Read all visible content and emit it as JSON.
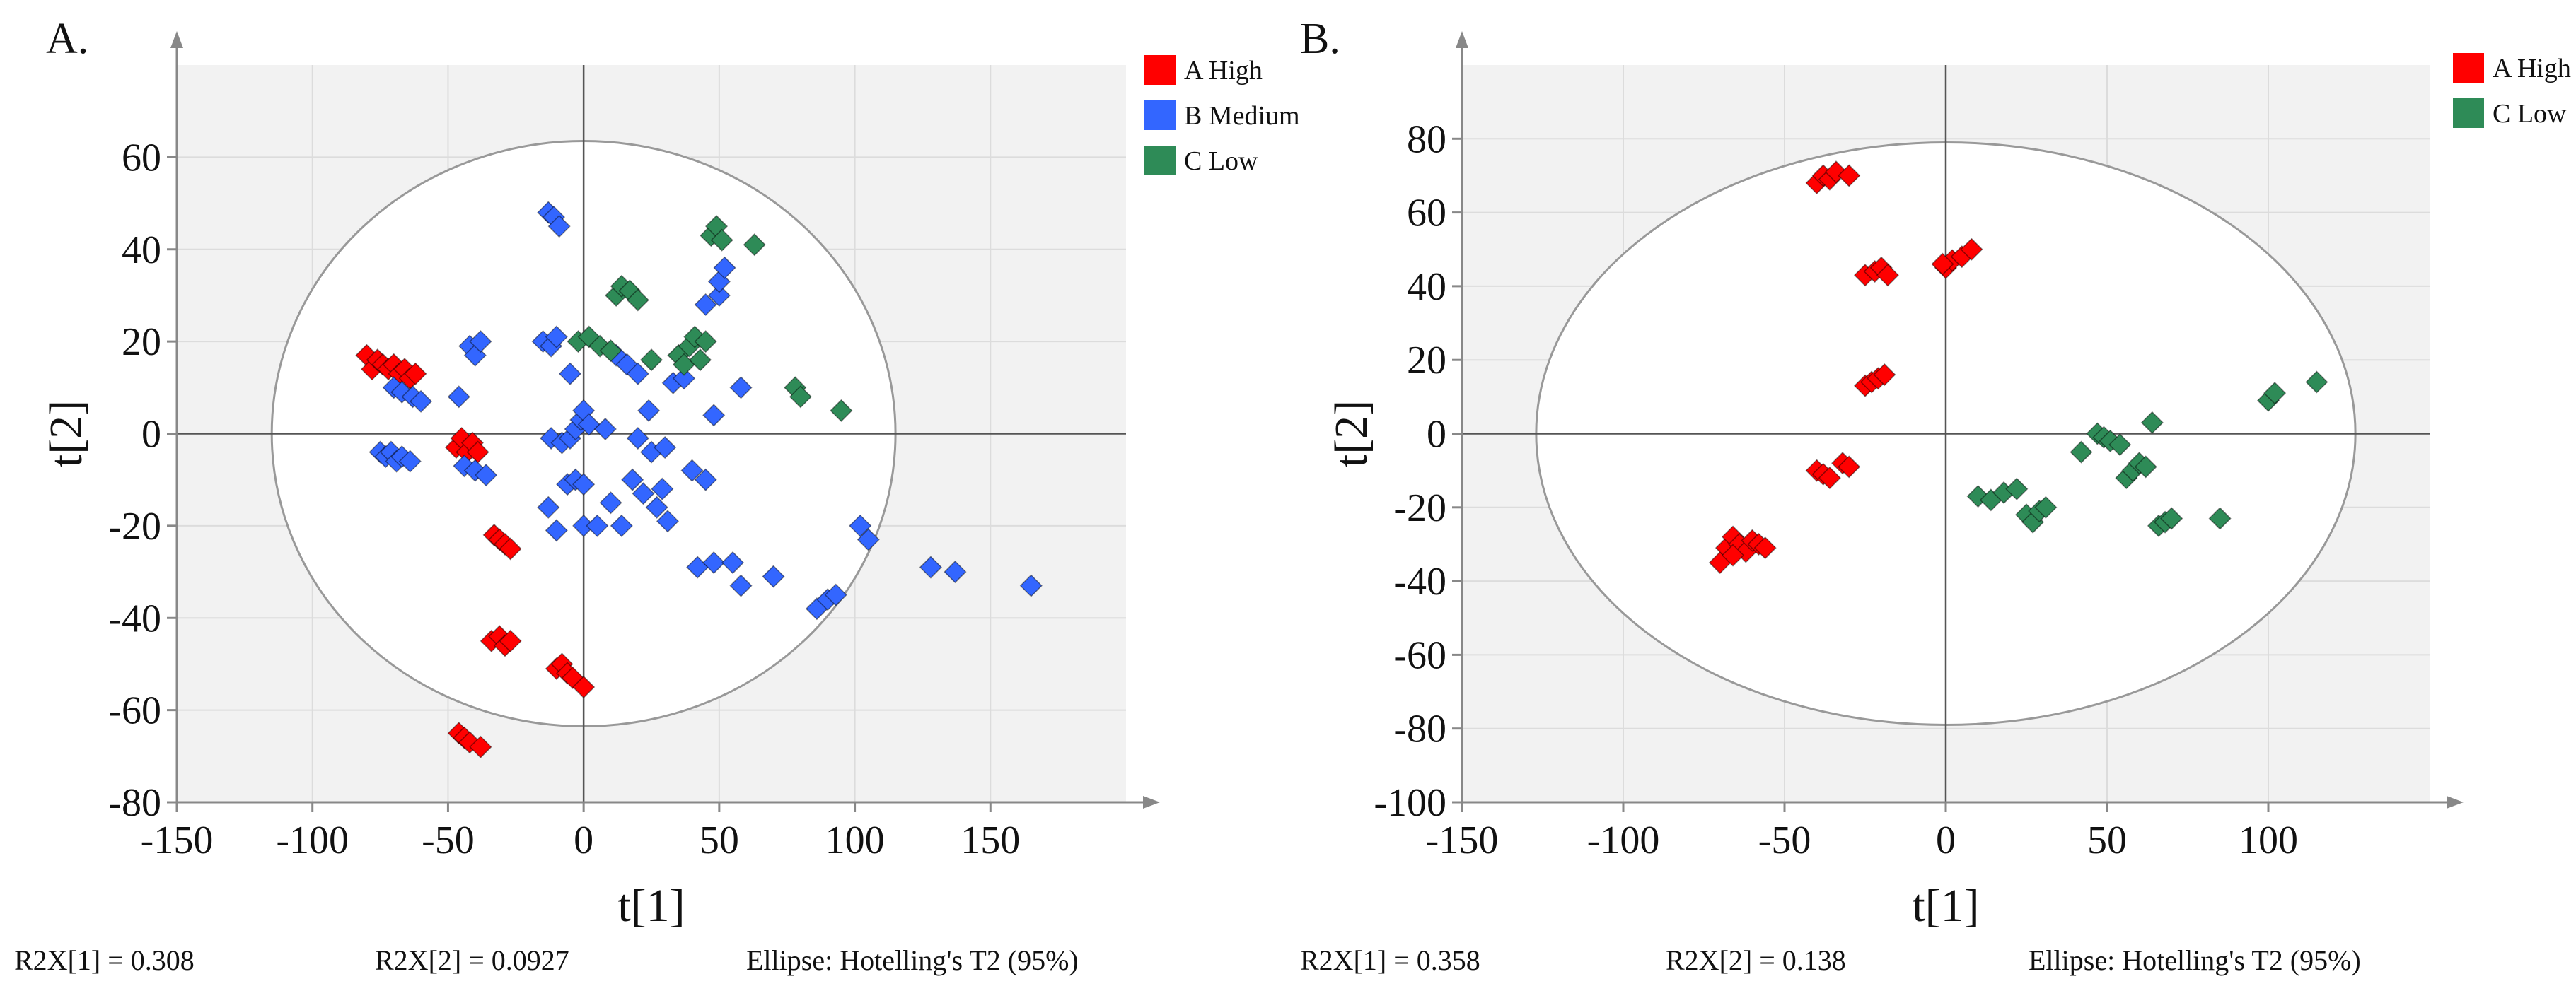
{
  "colors": {
    "high": "#ff0000",
    "medium": "#3366ff",
    "low": "#2e8b57",
    "plot_bg": "#f2f2f2",
    "grid": "#dcdcdc",
    "ellipse": "#999999",
    "ellipse_fill": "#ffffff",
    "axis": "#888888",
    "text": "#111111"
  },
  "chart_data": [
    {
      "panel_label": "A.",
      "type": "scatter",
      "xlabel": "t[1]",
      "ylabel": "t[2]",
      "xlim": [
        -150,
        200
      ],
      "ylim": [
        -80,
        80
      ],
      "xticks": [
        -150,
        -100,
        -50,
        0,
        50,
        100,
        150
      ],
      "xtick_labels": [
        "-150",
        "-100",
        "-50",
        "0",
        "50",
        "100",
        "150"
      ],
      "yticks": [
        -80,
        -60,
        -40,
        -20,
        0,
        20,
        40,
        60
      ],
      "ytick_labels": [
        "-80",
        "-60",
        "-40",
        "-20",
        "0",
        "20",
        "40",
        "60"
      ],
      "grid": true,
      "legend": "top-right outside",
      "ellipse": {
        "rx": 115,
        "ry": 63.5
      },
      "footer": [
        "R2X[1] = 0.308",
        "R2X[2] = 0.0927",
        "Ellipse: Hotelling's T2 (95%)"
      ],
      "series": [
        {
          "name": "A High",
          "color_key": "high",
          "points": [
            [
              -80,
              17
            ],
            [
              -78,
              14
            ],
            [
              -76,
              16
            ],
            [
              -74,
              15
            ],
            [
              -72,
              14
            ],
            [
              -70,
              15
            ],
            [
              -68,
              13
            ],
            [
              -66,
              14
            ],
            [
              -64,
              12
            ],
            [
              -62,
              13
            ],
            [
              -47,
              -3
            ],
            [
              -45,
              -1
            ],
            [
              -43,
              -4
            ],
            [
              -41,
              -2
            ],
            [
              -39,
              -4
            ],
            [
              -33,
              -22
            ],
            [
              -31,
              -23
            ],
            [
              -29,
              -24
            ],
            [
              -27,
              -25
            ],
            [
              -34,
              -45
            ],
            [
              -31,
              -44
            ],
            [
              -29,
              -46
            ],
            [
              -27,
              -45
            ],
            [
              -10,
              -51
            ],
            [
              -8,
              -50
            ],
            [
              -6,
              -52
            ],
            [
              -4,
              -53
            ],
            [
              0,
              -55
            ],
            [
              -46,
              -65
            ],
            [
              -44,
              -66
            ],
            [
              -42,
              -67
            ],
            [
              -38,
              -68
            ]
          ]
        },
        {
          "name": "B Medium",
          "color_key": "medium",
          "points": [
            [
              -75,
              -4
            ],
            [
              -73,
              -5
            ],
            [
              -71,
              -4
            ],
            [
              -69,
              -6
            ],
            [
              -67,
              -5
            ],
            [
              -64,
              -6
            ],
            [
              -70,
              10
            ],
            [
              -67,
              9
            ],
            [
              -63,
              8
            ],
            [
              -60,
              7
            ],
            [
              -46,
              8
            ],
            [
              -42,
              19
            ],
            [
              -40,
              17
            ],
            [
              -38,
              20
            ],
            [
              -44,
              -7
            ],
            [
              -40,
              -8
            ],
            [
              -36,
              -9
            ],
            [
              -13,
              48
            ],
            [
              -11,
              47
            ],
            [
              -9,
              45
            ],
            [
              -15,
              20
            ],
            [
              -12,
              19
            ],
            [
              -10,
              21
            ],
            [
              -5,
              13
            ],
            [
              -13,
              -16
            ],
            [
              -10,
              -21
            ],
            [
              -12,
              -1
            ],
            [
              -8,
              -2
            ],
            [
              -5,
              -1
            ],
            [
              -3,
              1
            ],
            [
              -1,
              3
            ],
            [
              0,
              5
            ],
            [
              2,
              2
            ],
            [
              -6,
              -11
            ],
            [
              -3,
              -10
            ],
            [
              0,
              -11
            ],
            [
              0,
              -20
            ],
            [
              12,
              17
            ],
            [
              16,
              15
            ],
            [
              20,
              13
            ],
            [
              14,
              -20
            ],
            [
              18,
              -10
            ],
            [
              20,
              -1
            ],
            [
              22,
              -13
            ],
            [
              25,
              -4
            ],
            [
              27,
              -16
            ],
            [
              29,
              -12
            ],
            [
              31,
              -19
            ],
            [
              33,
              11
            ],
            [
              37,
              12
            ],
            [
              40,
              -8
            ],
            [
              42,
              -29
            ],
            [
              45,
              -10
            ],
            [
              48,
              -28
            ],
            [
              48,
              4
            ],
            [
              50,
              30
            ],
            [
              45,
              28
            ],
            [
              50,
              33
            ],
            [
              52,
              36
            ],
            [
              55,
              -28
            ],
            [
              58,
              -33
            ],
            [
              58,
              10
            ],
            [
              70,
              -31
            ],
            [
              86,
              -38
            ],
            [
              90,
              -36
            ],
            [
              93,
              -35
            ],
            [
              102,
              -20
            ],
            [
              105,
              -23
            ],
            [
              128,
              -29
            ],
            [
              137,
              -30
            ],
            [
              165,
              -33
            ],
            [
              5,
              -20
            ],
            [
              10,
              -15
            ],
            [
              24,
              5
            ],
            [
              30,
              -3
            ],
            [
              8,
              1
            ]
          ]
        },
        {
          "name": "C Low",
          "color_key": "low",
          "points": [
            [
              -2,
              20
            ],
            [
              2,
              21
            ],
            [
              6,
              19
            ],
            [
              10,
              18
            ],
            [
              12,
              30
            ],
            [
              14,
              32
            ],
            [
              17,
              31
            ],
            [
              20,
              29
            ],
            [
              25,
              16
            ],
            [
              35,
              17
            ],
            [
              37,
              15
            ],
            [
              39,
              19
            ],
            [
              41,
              21
            ],
            [
              43,
              16
            ],
            [
              45,
              20
            ],
            [
              47,
              43
            ],
            [
              49,
              45
            ],
            [
              51,
              42
            ],
            [
              63,
              41
            ],
            [
              78,
              10
            ],
            [
              80,
              8
            ],
            [
              95,
              5
            ]
          ]
        }
      ]
    },
    {
      "panel_label": "B.",
      "type": "scatter",
      "xlabel": "t[1]",
      "ylabel": "t[2]",
      "xlim": [
        -150,
        150
      ],
      "ylim": [
        -100,
        100
      ],
      "xticks": [
        -150,
        -100,
        -50,
        0,
        50,
        100
      ],
      "xtick_labels": [
        "-150",
        "-100",
        "-50",
        "0",
        "50",
        "100"
      ],
      "yticks": [
        -100,
        -80,
        -60,
        -40,
        -20,
        0,
        20,
        40,
        60,
        80
      ],
      "ytick_labels": [
        "-100",
        "-80",
        "-60",
        "-40",
        "-20",
        "0",
        "20",
        "40",
        "60",
        "80"
      ],
      "grid": true,
      "legend": "top-right outside",
      "ellipse": {
        "rx": 127,
        "ry": 79
      },
      "footer": [
        "R2X[1] = 0.358",
        "R2X[2] = 0.138",
        "Ellipse: Hotelling's T2 (95%)"
      ],
      "series": [
        {
          "name": "A High",
          "color_key": "high",
          "points": [
            [
              -40,
              68
            ],
            [
              -38,
              70
            ],
            [
              -36,
              69
            ],
            [
              -34,
              71
            ],
            [
              -30,
              70
            ],
            [
              -25,
              43
            ],
            [
              -22,
              44
            ],
            [
              -20,
              45
            ],
            [
              -18,
              43
            ],
            [
              0,
              45
            ],
            [
              2,
              47
            ],
            [
              5,
              48
            ],
            [
              8,
              50
            ],
            [
              -1,
              46
            ],
            [
              -25,
              13
            ],
            [
              -23,
              14
            ],
            [
              -21,
              15
            ],
            [
              -19,
              16
            ],
            [
              -40,
              -10
            ],
            [
              -38,
              -11
            ],
            [
              -36,
              -12
            ],
            [
              -32,
              -8
            ],
            [
              -30,
              -9
            ],
            [
              -70,
              -35
            ],
            [
              -68,
              -31
            ],
            [
              -66,
              -28
            ],
            [
              -64,
              -30
            ],
            [
              -62,
              -32
            ],
            [
              -60,
              -29
            ],
            [
              -58,
              -30
            ],
            [
              -56,
              -31
            ],
            [
              -66,
              -33
            ]
          ]
        },
        {
          "name": "C Low",
          "color_key": "low",
          "points": [
            [
              10,
              -17
            ],
            [
              14,
              -18
            ],
            [
              18,
              -16
            ],
            [
              22,
              -15
            ],
            [
              25,
              -22
            ],
            [
              27,
              -24
            ],
            [
              29,
              -21
            ],
            [
              31,
              -20
            ],
            [
              42,
              -5
            ],
            [
              47,
              0
            ],
            [
              49,
              -1
            ],
            [
              51,
              -2
            ],
            [
              54,
              -3
            ],
            [
              56,
              -12
            ],
            [
              58,
              -10
            ],
            [
              60,
              -8
            ],
            [
              62,
              -9
            ],
            [
              64,
              3
            ],
            [
              66,
              -25
            ],
            [
              68,
              -24
            ],
            [
              70,
              -23
            ],
            [
              85,
              -23
            ],
            [
              100,
              9
            ],
            [
              102,
              11
            ],
            [
              115,
              14
            ]
          ]
        }
      ]
    }
  ]
}
